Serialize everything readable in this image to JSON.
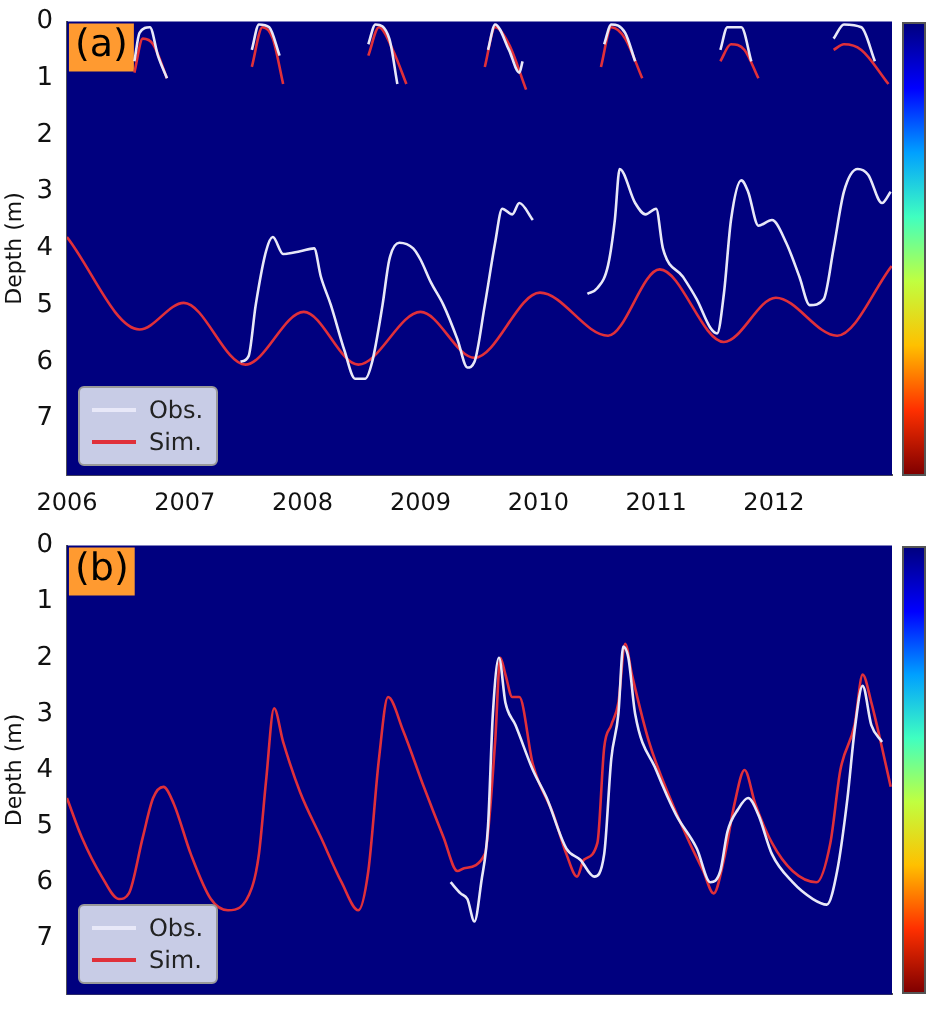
{
  "chart_data": [
    {
      "type": "line",
      "ylabel": "Depth (m)",
      "annotations": [
        "(a)"
      ],
      "legend": "bottom left",
      "grid": false,
      "marker": "none",
      "line_style": "solid",
      "xlim": [
        "2006-01-01",
        "2013-01-01"
      ],
      "xticks": [
        "2006",
        "2007",
        "2008",
        "2009",
        "2010",
        "2011",
        "2012"
      ],
      "ylim": [
        8,
        0
      ],
      "yticks": [
        0,
        1,
        2,
        3,
        4,
        5,
        6,
        7
      ],
      "series": [
        {
          "name": "Obs.",
          "color": "#e8e8f8",
          "x": [
            "2007-06-23",
            "2007-07-18",
            "2007-08-09",
            "2007-09-10",
            "2007-10-01",
            "2007-11-02",
            "2007-12-25",
            "2008-02-06",
            "2008-02-27",
            "2008-03-29",
            "2008-05-10",
            "2008-06-12",
            "2008-07-13",
            "2008-08-04",
            "2008-09-05",
            "2008-09-26",
            "2008-10-27",
            "2008-12-09",
            "2009-01-01",
            "2009-02-02",
            "2009-03-13",
            "2009-04-25",
            "2009-05-26",
            "2009-06-17",
            "2009-07-19",
            "2009-08-20",
            "2009-09-11",
            "2009-10-12",
            "2009-11-03",
            "2009-12-15",
            "2010-03-01",
            "2010-06-02",
            "2010-07-03",
            "2010-08-05",
            "2010-08-26",
            "2010-09-10",
            "2010-10-28",
            "2010-11-29",
            "2011-01-01",
            "2011-01-22",
            "2011-03-25",
            "2011-05-07",
            "2011-06-18",
            "2011-07-09",
            "2011-07-30",
            "2011-08-21",
            "2011-09-22",
            "2011-10-13",
            "2011-11-14",
            "2011-12-26",
            "2012-02-08",
            "2012-03-20",
            "2012-04-21",
            "2012-06-03",
            "2012-07-04",
            "2012-08-05",
            "2012-09-17",
            "2012-10-19",
            "2012-12-01",
            "2012-12-28"
          ],
          "values": [
            6.0,
            5.9,
            5.0,
            4.05,
            3.8,
            4.1,
            4.05,
            4.0,
            4.5,
            5.0,
            5.8,
            6.3,
            6.3,
            6.0,
            5.0,
            4.2,
            3.9,
            4.0,
            4.2,
            4.6,
            5.0,
            5.6,
            6.1,
            6.0,
            5.0,
            3.9,
            3.3,
            3.4,
            3.2,
            3.5,
            null,
            4.8,
            4.7,
            4.3,
            3.5,
            2.6,
            3.2,
            3.4,
            3.3,
            4.0,
            4.5,
            4.9,
            5.4,
            5.5,
            4.8,
            3.5,
            2.8,
            3.0,
            3.6,
            3.5,
            3.9,
            4.5,
            5.0,
            4.9,
            4.0,
            3.0,
            2.6,
            2.7,
            3.2,
            3.0
          ]
        },
        {
          "color": "#e8e8f8",
          "x": [
            "2006-07-29",
            "2006-08-14",
            "2006-09-15",
            "2006-10-10",
            "2006-11-07",
            "2007-01-01",
            "2007-07-28",
            "2007-08-19",
            "2007-09-20",
            "2007-10-22",
            "2008-01-01",
            "2008-07-23",
            "2008-08-14",
            "2008-09-26",
            "2008-10-21",
            "2009-01-01",
            "2009-07-29",
            "2009-08-20",
            "2009-10-02",
            "2009-11-03",
            "2009-11-13",
            "2010-01-01",
            "2010-07-24",
            "2010-08-15",
            "2010-09-27",
            "2010-10-28",
            "2011-01-01",
            "2011-07-19",
            "2011-08-10",
            "2011-09-22",
            "2011-10-23",
            "2012-01-01",
            "2012-07-04",
            "2012-08-05",
            "2012-09-28",
            "2012-11-09"
          ],
          "values": [
            0.7,
            0.2,
            0.1,
            0.6,
            1.0,
            null,
            0.5,
            0.05,
            0.1,
            0.6,
            null,
            0.4,
            0.05,
            0.3,
            1.1,
            null,
            0.5,
            0.05,
            0.5,
            0.9,
            0.7,
            null,
            0.4,
            0.05,
            0.2,
            0.7,
            null,
            0.5,
            0.1,
            0.1,
            0.7,
            null,
            0.3,
            0.05,
            0.1,
            0.7
          ]
        },
        {
          "name": "Sim.",
          "color": "#e0303a",
          "x": [
            "2006-01-01",
            "2006-08-14",
            "2006-12-29",
            "2007-07-08",
            "2008-01-05",
            "2008-06-22",
            "2009-01-01",
            "2009-06-17",
            "2010-01-06",
            "2010-08-05",
            "2011-01-12",
            "2011-07-30",
            "2012-01-07",
            "2012-07-15",
            "2012-12-31"
          ],
          "values": [
            3.8,
            5.43,
            4.96,
            6.05,
            5.12,
            6.05,
            5.12,
            5.93,
            4.78,
            5.54,
            4.37,
            5.65,
            4.87,
            5.54,
            4.31
          ]
        },
        {
          "color": "#e0303a",
          "x": [
            "2006-07-29",
            "2006-08-24",
            "2006-09-25",
            "2006-11-07",
            "2007-01-01",
            "2007-07-28",
            "2007-08-30",
            "2007-10-01",
            "2007-11-02",
            "2008-01-01",
            "2008-07-23",
            "2008-08-25",
            "2008-10-07",
            "2008-11-18",
            "2009-01-01",
            "2009-07-19",
            "2009-08-20",
            "2009-10-02",
            "2009-11-24",
            "2010-01-01",
            "2010-07-14",
            "2010-08-15",
            "2010-09-27",
            "2010-11-19",
            "2011-01-01",
            "2011-07-19",
            "2011-08-21",
            "2011-10-02",
            "2011-11-14",
            "2012-01-01",
            "2012-07-04",
            "2012-08-05",
            "2012-09-28",
            "2012-12-21"
          ],
          "values": [
            0.9,
            0.3,
            0.4,
            1.0,
            null,
            0.8,
            0.1,
            0.3,
            1.1,
            null,
            0.6,
            0.1,
            0.5,
            1.1,
            null,
            0.8,
            0.1,
            0.4,
            1.2,
            null,
            0.8,
            0.1,
            0.3,
            1.0,
            null,
            0.7,
            0.4,
            0.5,
            1.0,
            null,
            0.5,
            0.4,
            0.5,
            1.1
          ]
        }
      ]
    },
    {
      "type": "line",
      "ylabel": "Depth (m)",
      "annotations": [
        "(b)"
      ],
      "legend": "bottom left",
      "grid": false,
      "marker": "none",
      "line_style": "solid",
      "tick_labels": "y",
      "xlim": [
        "2006-01-01",
        "2013-01-01"
      ],
      "ylim": [
        8,
        0
      ],
      "yticks": [
        0,
        1,
        2,
        3,
        4,
        5,
        6,
        7
      ],
      "series": [
        {
          "name": "Obs.",
          "color": "#e8e8f8",
          "x": [
            "2009-04-04",
            "2009-05-05",
            "2009-05-26",
            "2009-06-17",
            "2009-07-08",
            "2009-07-29",
            "2009-08-13",
            "2009-09-01",
            "2009-09-21",
            "2009-10-22",
            "2009-12-15",
            "2010-01-27",
            "2010-03-29",
            "2010-05-11",
            "2010-06-23",
            "2010-07-24",
            "2010-08-15",
            "2010-09-06",
            "2010-09-21",
            "2010-10-07",
            "2010-10-28",
            "2011-01-01",
            "2011-03-04",
            "2011-05-07",
            "2011-06-18",
            "2011-07-19",
            "2011-08-10",
            "2011-09-12",
            "2011-10-13",
            "2011-11-14",
            "2011-12-26",
            "2012-02-28",
            "2012-05-01",
            "2012-06-13",
            "2012-07-15",
            "2012-08-16",
            "2012-09-07",
            "2012-10-02",
            "2012-10-29",
            "2012-12-01"
          ],
          "values": [
            6.0,
            6.2,
            6.3,
            6.7,
            6.0,
            5.0,
            3.0,
            2.0,
            2.8,
            3.2,
            4.0,
            4.5,
            5.4,
            5.6,
            5.9,
            5.5,
            3.8,
            3.0,
            1.8,
            2.0,
            3.0,
            4.0,
            4.8,
            5.4,
            6.0,
            5.8,
            5.1,
            4.7,
            4.5,
            4.8,
            5.5,
            6.0,
            6.3,
            6.4,
            5.8,
            4.5,
            3.3,
            2.5,
            3.2,
            3.5
          ]
        },
        {
          "name": "Sim.",
          "color": "#e0303a",
          "x": [
            "2006-01-01",
            "2006-02-16",
            "2006-04-19",
            "2006-06-11",
            "2006-07-12",
            "2006-08-24",
            "2006-09-25",
            "2006-10-27",
            "2006-11-28",
            "2007-01-20",
            "2007-03-23",
            "2007-05-15",
            "2007-07-28",
            "2007-08-19",
            "2007-09-10",
            "2007-10-05",
            "2007-11-02",
            "2007-12-25",
            "2008-02-27",
            "2008-05-01",
            "2008-06-22",
            "2008-07-23",
            "2008-08-25",
            "2008-09-22",
            "2008-11-08",
            "2009-01-11",
            "2009-03-13",
            "2009-04-25",
            "2009-05-16",
            "2009-07-19",
            "2009-08-20",
            "2009-09-05",
            "2009-09-21",
            "2009-10-12",
            "2009-11-03",
            "2009-12-15",
            "2010-02-17",
            "2010-03-29",
            "2010-05-01",
            "2010-05-22",
            "2010-07-03",
            "2010-07-24",
            "2010-08-15",
            "2010-09-06",
            "2010-09-27",
            "2010-10-18",
            "2010-12-10",
            "2011-02-13",
            "2011-04-15",
            "2011-05-27",
            "2011-06-28",
            "2011-07-30",
            "2011-09-01",
            "2011-10-02",
            "2011-11-04",
            "2011-12-26",
            "2012-02-28",
            "2012-05-12",
            "2012-06-24",
            "2012-07-25",
            "2012-09-07",
            "2012-10-02",
            "2012-10-29",
            "2012-12-01",
            "2012-12-28"
          ],
          "values": [
            4.5,
            5.2,
            5.9,
            6.3,
            6.2,
            5.2,
            4.5,
            4.3,
            4.6,
            5.5,
            6.3,
            6.5,
            6.1,
            5.5,
            4.2,
            2.9,
            3.5,
            4.4,
            5.2,
            6.0,
            6.5,
            5.8,
            3.8,
            2.7,
            3.3,
            4.3,
            5.2,
            5.8,
            5.75,
            5.5,
            3.5,
            2.0,
            2.3,
            2.7,
            2.7,
            3.9,
            4.8,
            5.5,
            5.9,
            5.6,
            5.3,
            3.6,
            3.2,
            2.8,
            1.75,
            2.3,
            3.5,
            4.5,
            5.3,
            5.8,
            6.2,
            5.6,
            4.6,
            4.0,
            4.6,
            5.3,
            5.8,
            6.0,
            5.3,
            4.0,
            3.2,
            2.3,
            2.8,
            3.6,
            4.3
          ]
        }
      ]
    }
  ]
}
